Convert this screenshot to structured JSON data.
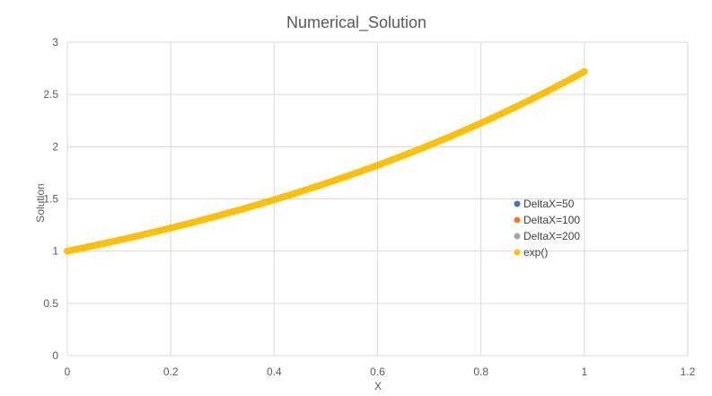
{
  "chart_data": {
    "type": "scatter",
    "title": "Numerical_Solution",
    "xlabel": "X",
    "ylabel": "Solution",
    "xlim": [
      0,
      1.2
    ],
    "ylim": [
      0,
      3
    ],
    "xticks": [
      0,
      0.2,
      0.4,
      0.6,
      0.8,
      1,
      1.2
    ],
    "yticks": [
      0,
      0.5,
      1,
      1.5,
      2,
      2.5,
      3
    ],
    "xtick_labels": [
      "0",
      "0.2",
      "0.4",
      "0.6",
      "0.8",
      "1",
      "1.2"
    ],
    "ytick_labels": [
      "0",
      "0.5",
      "1",
      "1.5",
      "2",
      "2.5",
      "3"
    ],
    "grid": true,
    "legend_position": "right",
    "series": [
      {
        "name": "DeltaX=50",
        "color": "#4472C4",
        "function": "exp",
        "x_start": 0,
        "x_end": 1,
        "points": 51
      },
      {
        "name": "DeltaX=100",
        "color": "#ED7D31",
        "function": "exp",
        "x_start": 0,
        "x_end": 1,
        "points": 101
      },
      {
        "name": "DeltaX=200",
        "color": "#A5A5A5",
        "function": "exp",
        "x_start": 0,
        "x_end": 1,
        "points": 201
      },
      {
        "name": "exp()",
        "color": "#FFC000",
        "function": "exp",
        "x_start": 0,
        "x_end": 1,
        "points": 201
      }
    ]
  }
}
